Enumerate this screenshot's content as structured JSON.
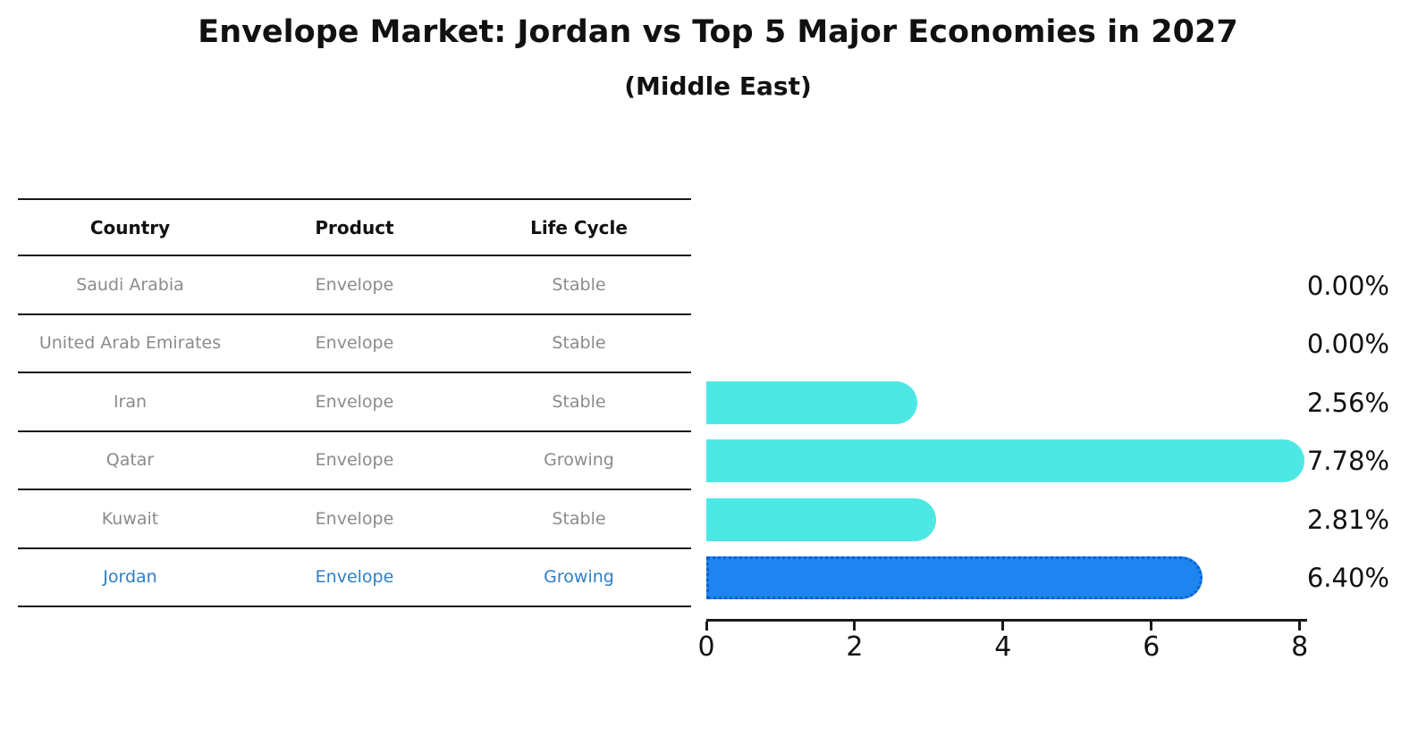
{
  "title": "Envelope Market: Jordan vs Top 5 Major Economies in 2027",
  "subtitle": "(Middle East)",
  "table": {
    "headers": [
      "Country",
      "Product",
      "Life Cycle"
    ],
    "rows": [
      {
        "country": "Saudi Arabia",
        "product": "Envelope",
        "life_cycle": "Stable",
        "highlighted": false
      },
      {
        "country": "United Arab Emirates",
        "product": "Envelope",
        "life_cycle": "Stable",
        "highlighted": false
      },
      {
        "country": "Iran",
        "product": "Envelope",
        "life_cycle": "Stable",
        "highlighted": false
      },
      {
        "country": "Qatar",
        "product": "Envelope",
        "life_cycle": "Growing",
        "highlighted": false
      },
      {
        "country": "Kuwait",
        "product": "Envelope",
        "life_cycle": "Stable",
        "highlighted": false
      },
      {
        "country": "Jordan",
        "product": "Envelope",
        "life_cycle": "Growing",
        "highlighted": true
      }
    ]
  },
  "chart_data": {
    "type": "bar",
    "orientation": "horizontal",
    "title": "Envelope Market: Jordan vs Top 5 Major Economies in 2027",
    "subtitle": "(Middle East)",
    "categories": [
      "Saudi Arabia",
      "United Arab Emirates",
      "Iran",
      "Qatar",
      "Kuwait",
      "Jordan"
    ],
    "values": [
      0.0,
      0.0,
      2.56,
      7.78,
      2.81,
      6.4
    ],
    "value_labels": [
      "0.00%",
      "0.00%",
      "2.56%",
      "7.78%",
      "2.81%",
      "6.40%"
    ],
    "highlight_category": "Jordan",
    "xlabel": "",
    "ylabel": "",
    "xlim": [
      0,
      8.1
    ],
    "x_ticks": [
      0,
      2,
      4,
      6,
      8
    ],
    "grid": false,
    "legend": "none",
    "colors": {
      "default_bar": "#4de8e4",
      "highlight_bar": "#1e85f0",
      "highlight_border": "#0f5fd0",
      "highlight_text": "#2e7ec4",
      "text": "#111111",
      "muted_text": "#8b8b8b"
    }
  }
}
